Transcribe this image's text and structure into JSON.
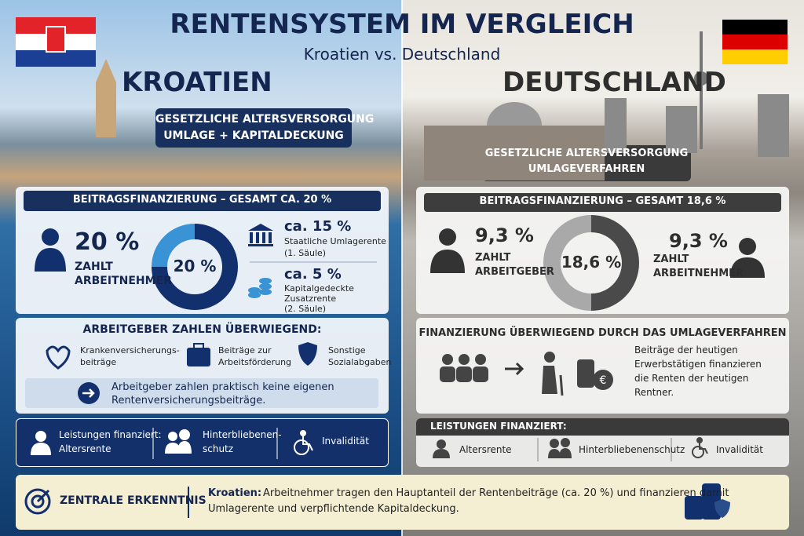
{
  "header": {
    "title": "RENTENSYSTEM IM VERGLEICH",
    "subtitle": "Kroatien vs. Deutschland"
  },
  "croatia": {
    "name": "KROATIEN",
    "system": [
      "GESETZLICHE ALTERSVERSORGUNG",
      "UMLAGE + KAPITALDECKUNG"
    ],
    "financing": {
      "title": "BEITRAGSFINANZIERUNG – GESAMT CA. 20 %",
      "payer_share": "20 %",
      "payer": [
        "ZAHLT",
        "ARBEITNEHMER"
      ],
      "donut_center": "20 %",
      "segments": [
        {
          "value": 15,
          "label": "ca. 15 %",
          "name": "Staatliche Umlagerente",
          "detail": "(1. Säule)",
          "color": "#12306e"
        },
        {
          "value": 5,
          "label": "ca. 5 %",
          "name": [
            "Kapitalgedeckte",
            "Zusatzrente"
          ],
          "detail": "(2. Säule)",
          "color": "#3a93d4"
        }
      ]
    },
    "employer": {
      "title": "ARBEITGEBER ZAHLEN ÜBERWIEGEND:",
      "items": [
        [
          "Krankenversicherungs-",
          "beiträge"
        ],
        [
          "Beiträge zur",
          "Arbeitsförderung"
        ],
        [
          "Sonstige",
          "Sozialabgaben"
        ]
      ],
      "note": [
        "Arbeitgeber zahlen praktisch keine eigenen",
        "Rentenversicherungsbeiträge."
      ]
    },
    "benefits": [
      [
        "Leistungen finanziert:",
        "Altersrente"
      ],
      [
        "Hinterbliebenen-",
        "schutz"
      ],
      [
        "Invalidität"
      ]
    ]
  },
  "germany": {
    "name": "DEUTSCHLAND",
    "system": [
      "GESETZLICHE ALTERSVERSORGUNG",
      "UMLAGEVERFAHREN"
    ],
    "financing": {
      "title": "BEITRAGSFINANZIERUNG – GESAMT 18,6 %",
      "donut_center": "18,6 %",
      "segments": [
        {
          "value": 9.3,
          "label": "9,3 %",
          "payer": [
            "ZAHLT",
            "ARBEITGEBER"
          ],
          "color": "#4a4a4a"
        },
        {
          "value": 9.3,
          "label": "9,3 %",
          "payer": [
            "ZAHLT",
            "ARBEITNEHMER"
          ],
          "color": "#a9a9a9"
        }
      ]
    },
    "mechanism": {
      "title": "FINANZIERUNG ÜBERWIEGEND DURCH DAS UMLAGEVERFAHREN",
      "text": [
        "Beiträge der heutigen",
        "Erwerbstätigen finanzieren",
        "die Renten der heutigen",
        "Rentner."
      ]
    },
    "benefits": {
      "title": "LEISTUNGEN FINANZIERT:",
      "items": [
        "Altersrente",
        "Hinterbliebenenschutz",
        "Invalidität"
      ]
    }
  },
  "conclusion": {
    "title": "ZENTRALE ERKENNTNIS",
    "lead": "Kroatien:",
    "text": [
      "Arbeitnehmer tragen den Hauptanteil der Rentenbeiträge (ca. 20 %) und finanzieren damit",
      "Umlagerente und verpflichtende Kapitaldeckung."
    ]
  }
}
